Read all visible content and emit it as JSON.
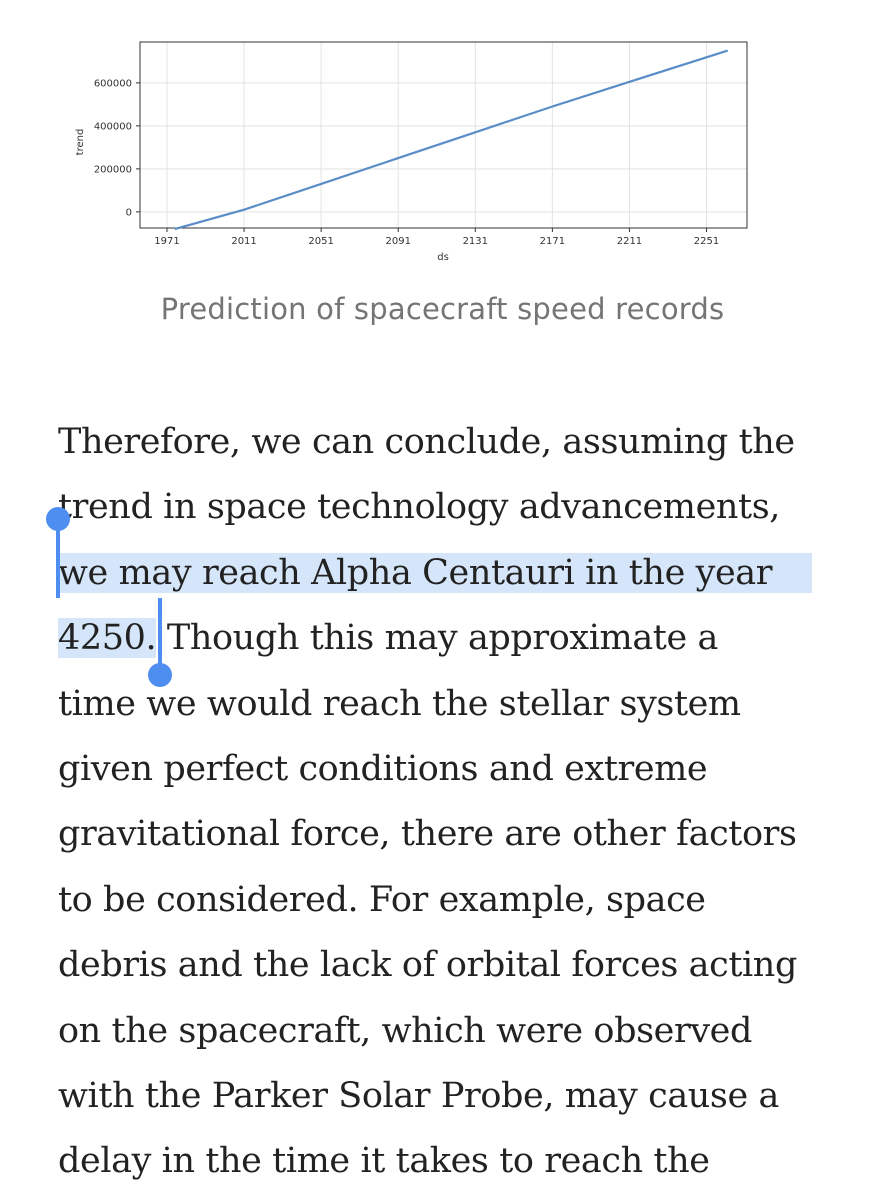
{
  "chart_data": {
    "type": "line",
    "xlabel": "ds",
    "ylabel": "trend",
    "x_ticks": [
      "1971",
      "2011",
      "2051",
      "2091",
      "2131",
      "2171",
      "2211",
      "2251"
    ],
    "y_ticks": [
      "0",
      "200000",
      "400000",
      "600000"
    ],
    "xlim": [
      1957,
      2272
    ],
    "ylim": [
      -75000,
      790000
    ],
    "grid": true,
    "series": [
      {
        "x": [
          1975,
          2011,
          2051,
          2091,
          2131,
          2171,
          2211,
          2262
        ],
        "y": [
          -80000,
          10000,
          130000,
          250000,
          370000,
          490000,
          605000,
          750000
        ]
      }
    ],
    "line_color": "#5a8dc8"
  },
  "caption": "Prediction of spacecraft speed records",
  "article": {
    "lines": [
      {
        "text": "Therefore, we can conclude, assuming the"
      },
      {
        "text": "trend in space technology advancements,"
      },
      {
        "selected": "we may reach Alpha Centauri in the year",
        "text": ""
      },
      {
        "selected": "4250.",
        "text": " Though this may approximate a"
      },
      {
        "text": "time we would reach the stellar system"
      },
      {
        "text": "given perfect conditions and extreme"
      },
      {
        "text": "gravitational force, there are other factors"
      },
      {
        "text": "to be considered. For example, space"
      },
      {
        "text": "debris and the lack of orbital forces acting"
      },
      {
        "text": "on the spacecraft, which were observed"
      },
      {
        "text": "with the Parker Solar Probe, may cause a"
      },
      {
        "text": "delay in the time it takes to reach the"
      }
    ]
  },
  "selection": {
    "selected_text": "we may reach Alpha Centauri in the year 4250.",
    "highlight_color": "#d6e6fa",
    "handle_color": "#4e8ef0"
  }
}
